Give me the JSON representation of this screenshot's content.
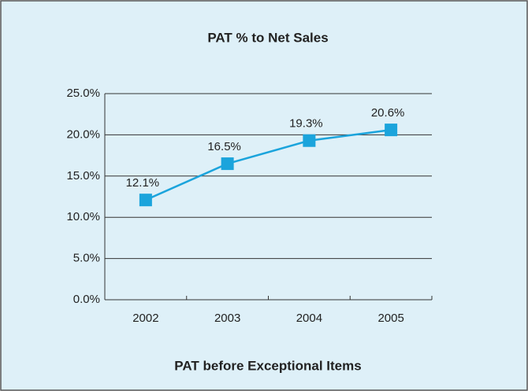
{
  "chart_data": {
    "type": "line",
    "title": "PAT % to Net Sales",
    "xlabel": "PAT before Exceptional Items",
    "categories": [
      "2002",
      "2003",
      "2004",
      "2005"
    ],
    "series": [
      {
        "name": "PAT % to Net Sales",
        "color": "#1ba4dc",
        "values": [
          12.1,
          16.5,
          19.3,
          20.6
        ],
        "value_labels": [
          "12.1%",
          "16.5%",
          "19.3%",
          "20.6%"
        ]
      }
    ],
    "ylim": [
      0,
      25
    ],
    "yticks": [
      {
        "value": 0,
        "label": "0.0%"
      },
      {
        "value": 5,
        "label": "5.0%"
      },
      {
        "value": 10,
        "label": "10.0%"
      },
      {
        "value": 15,
        "label": "15.0%"
      },
      {
        "value": 20,
        "label": "20.0%"
      },
      {
        "value": 25,
        "label": "25.0%"
      }
    ],
    "grid": true
  }
}
